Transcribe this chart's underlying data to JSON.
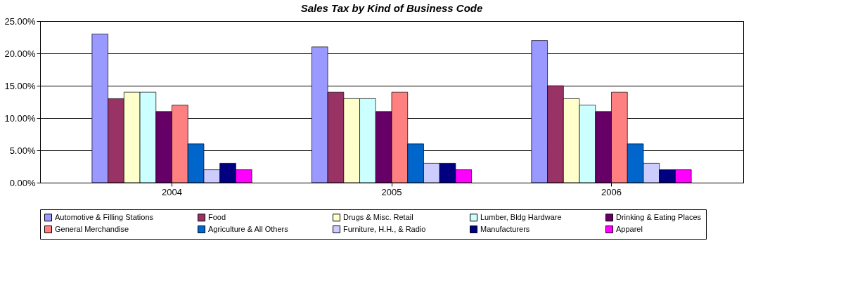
{
  "chart_data": {
    "type": "bar",
    "title": "Sales Tax by Kind of Business Code",
    "categories": [
      "2004",
      "2005",
      "2006"
    ],
    "series": [
      {
        "name": "Automotive & Filling Stations",
        "color": "#9999ff",
        "values": [
          23,
          21,
          22
        ]
      },
      {
        "name": "Food",
        "color": "#993366",
        "values": [
          13,
          14,
          15
        ]
      },
      {
        "name": "Drugs & Misc. Retail",
        "color": "#ffffcc",
        "values": [
          14,
          13,
          13
        ]
      },
      {
        "name": "Lumber, Bldg Hardware",
        "color": "#ccffff",
        "values": [
          14,
          13,
          12
        ]
      },
      {
        "name": "Drinking & Eating Places",
        "color": "#660066",
        "values": [
          11,
          11,
          11
        ]
      },
      {
        "name": "General Merchandise",
        "color": "#ff8080",
        "values": [
          12,
          14,
          14
        ]
      },
      {
        "name": "Agriculture & All Others",
        "color": "#0066cc",
        "values": [
          6,
          6,
          6
        ]
      },
      {
        "name": "Furniture, H.H., & Radio",
        "color": "#ccccff",
        "values": [
          2,
          3,
          3
        ]
      },
      {
        "name": "Manufacturers",
        "color": "#000080",
        "values": [
          3,
          3,
          2
        ]
      },
      {
        "name": "Apparel",
        "color": "#ff00ff",
        "values": [
          2,
          2,
          2
        ]
      }
    ],
    "ylim": [
      0,
      25
    ],
    "yticks": [
      {
        "value": 0,
        "label": "0.00%"
      },
      {
        "value": 5,
        "label": "5.00%"
      },
      {
        "value": 10,
        "label": "10.00%"
      },
      {
        "value": 15,
        "label": "15.00%"
      },
      {
        "value": 20,
        "label": "20.00%"
      },
      {
        "value": 25,
        "label": "25.00%"
      }
    ],
    "grid": "y",
    "legend": "bottom"
  }
}
